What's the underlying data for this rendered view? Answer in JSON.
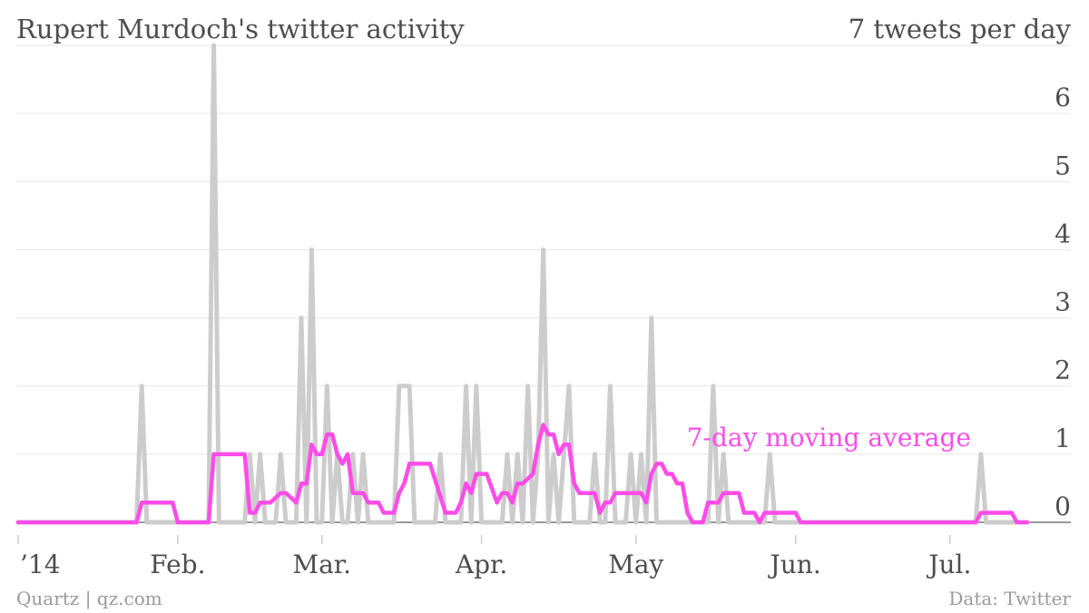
{
  "chart_data": {
    "type": "line",
    "title": "Rupert Murdoch's twitter activity",
    "ylabel": "7 tweets per day",
    "yticks": [
      0,
      1,
      2,
      3,
      4,
      5,
      6
    ],
    "ylim": [
      0,
      7
    ],
    "xlim": [
      "2014-01-01",
      "2014-07-22"
    ],
    "xticks": [
      {
        "date": "2014-01-01",
        "label": "’14"
      },
      {
        "date": "2014-02-01",
        "label": "Feb."
      },
      {
        "date": "2014-03-01",
        "label": "Mar."
      },
      {
        "date": "2014-04-01",
        "label": "Apr."
      },
      {
        "date": "2014-05-01",
        "label": "May"
      },
      {
        "date": "2014-06-01",
        "label": "Jun."
      },
      {
        "date": "2014-07-01",
        "label": "Jul."
      }
    ],
    "grid": true,
    "source": "Data: Twitter",
    "credit": "Quartz | qz.com",
    "series": [
      {
        "name": "",
        "color": "#cccccc",
        "points": [
          [
            "2014-01-01",
            0
          ],
          [
            "2014-01-24",
            0
          ],
          [
            "2014-01-25",
            2
          ],
          [
            "2014-01-26",
            0
          ],
          [
            "2014-02-07",
            0
          ],
          [
            "2014-02-08",
            7
          ],
          [
            "2014-02-09",
            0
          ],
          [
            "2014-02-14",
            0
          ],
          [
            "2014-02-15",
            1
          ],
          [
            "2014-02-16",
            0
          ],
          [
            "2014-02-17",
            1
          ],
          [
            "2014-02-18",
            0
          ],
          [
            "2014-02-20",
            0
          ],
          [
            "2014-02-21",
            1
          ],
          [
            "2014-02-22",
            0
          ],
          [
            "2014-02-24",
            0
          ],
          [
            "2014-02-25",
            3
          ],
          [
            "2014-02-26",
            0
          ],
          [
            "2014-02-27",
            4
          ],
          [
            "2014-02-28",
            0
          ],
          [
            "2014-03-01",
            0
          ],
          [
            "2014-03-02",
            2
          ],
          [
            "2014-03-03",
            0
          ],
          [
            "2014-03-04",
            1
          ],
          [
            "2014-03-05",
            0
          ],
          [
            "2014-03-06",
            0
          ],
          [
            "2014-03-07",
            1
          ],
          [
            "2014-03-08",
            0
          ],
          [
            "2014-03-09",
            1
          ],
          [
            "2014-03-10",
            0
          ],
          [
            "2014-03-15",
            0
          ],
          [
            "2014-03-16",
            2
          ],
          [
            "2014-03-18",
            2
          ],
          [
            "2014-03-19",
            0
          ],
          [
            "2014-03-23",
            0
          ],
          [
            "2014-03-24",
            1
          ],
          [
            "2014-03-25",
            0
          ],
          [
            "2014-03-28",
            0
          ],
          [
            "2014-03-29",
            2
          ],
          [
            "2014-03-30",
            0
          ],
          [
            "2014-03-31",
            2
          ],
          [
            "2014-04-01",
            0
          ],
          [
            "2014-04-05",
            0
          ],
          [
            "2014-04-06",
            1
          ],
          [
            "2014-04-07",
            0
          ],
          [
            "2014-04-08",
            1
          ],
          [
            "2014-04-09",
            0
          ],
          [
            "2014-04-10",
            2
          ],
          [
            "2014-04-11",
            0
          ],
          [
            "2014-04-12",
            1
          ],
          [
            "2014-04-13",
            4
          ],
          [
            "2014-04-14",
            0
          ],
          [
            "2014-04-15",
            1
          ],
          [
            "2014-04-16",
            0
          ],
          [
            "2014-04-17",
            1
          ],
          [
            "2014-04-18",
            2
          ],
          [
            "2014-04-19",
            0
          ],
          [
            "2014-04-22",
            0
          ],
          [
            "2014-04-23",
            1
          ],
          [
            "2014-04-24",
            0
          ],
          [
            "2014-04-25",
            0
          ],
          [
            "2014-04-26",
            2
          ],
          [
            "2014-04-27",
            0
          ],
          [
            "2014-04-29",
            0
          ],
          [
            "2014-04-30",
            1
          ],
          [
            "2014-05-01",
            0
          ],
          [
            "2014-05-02",
            1
          ],
          [
            "2014-05-03",
            0
          ],
          [
            "2014-05-04",
            3
          ],
          [
            "2014-05-05",
            0
          ],
          [
            "2014-05-15",
            0
          ],
          [
            "2014-05-16",
            2
          ],
          [
            "2014-05-17",
            0
          ],
          [
            "2014-05-18",
            1
          ],
          [
            "2014-05-19",
            0
          ],
          [
            "2014-05-26",
            0
          ],
          [
            "2014-05-27",
            1
          ],
          [
            "2014-05-28",
            0
          ],
          [
            "2014-07-06",
            0
          ],
          [
            "2014-07-07",
            1
          ],
          [
            "2014-07-08",
            0
          ],
          [
            "2014-07-16",
            0
          ]
        ]
      },
      {
        "name": "7-day moving average",
        "color": "#ff4ce8",
        "points": [
          [
            "2014-01-01",
            0
          ],
          [
            "2014-01-24",
            0
          ],
          [
            "2014-01-25",
            0.29
          ],
          [
            "2014-01-31",
            0.29
          ],
          [
            "2014-02-01",
            0
          ],
          [
            "2014-02-07",
            0
          ],
          [
            "2014-02-08",
            1
          ],
          [
            "2014-02-14",
            1
          ],
          [
            "2014-02-15",
            0.14
          ],
          [
            "2014-02-16",
            0.14
          ],
          [
            "2014-02-17",
            0.29
          ],
          [
            "2014-02-19",
            0.29
          ],
          [
            "2014-02-21",
            0.43
          ],
          [
            "2014-02-22",
            0.43
          ],
          [
            "2014-02-24",
            0.29
          ],
          [
            "2014-02-25",
            0.57
          ],
          [
            "2014-02-26",
            0.57
          ],
          [
            "2014-02-27",
            1.14
          ],
          [
            "2014-02-28",
            1.0
          ],
          [
            "2014-03-01",
            1.0
          ],
          [
            "2014-03-02",
            1.29
          ],
          [
            "2014-03-03",
            1.29
          ],
          [
            "2014-03-04",
            1.0
          ],
          [
            "2014-03-05",
            0.86
          ],
          [
            "2014-03-06",
            1.0
          ],
          [
            "2014-03-07",
            0.43
          ],
          [
            "2014-03-09",
            0.43
          ],
          [
            "2014-03-10",
            0.29
          ],
          [
            "2014-03-12",
            0.29
          ],
          [
            "2014-03-13",
            0.14
          ],
          [
            "2014-03-15",
            0.14
          ],
          [
            "2014-03-16",
            0.43
          ],
          [
            "2014-03-17",
            0.57
          ],
          [
            "2014-03-18",
            0.86
          ],
          [
            "2014-03-22",
            0.86
          ],
          [
            "2014-03-25",
            0.14
          ],
          [
            "2014-03-27",
            0.14
          ],
          [
            "2014-03-28",
            0.29
          ],
          [
            "2014-03-29",
            0.57
          ],
          [
            "2014-03-30",
            0.43
          ],
          [
            "2014-03-31",
            0.71
          ],
          [
            "2014-04-02",
            0.71
          ],
          [
            "2014-04-04",
            0.29
          ],
          [
            "2014-04-05",
            0.43
          ],
          [
            "2014-04-06",
            0.43
          ],
          [
            "2014-04-07",
            0.29
          ],
          [
            "2014-04-08",
            0.57
          ],
          [
            "2014-04-09",
            0.57
          ],
          [
            "2014-04-11",
            0.71
          ],
          [
            "2014-04-12",
            1.14
          ],
          [
            "2014-04-13",
            1.43
          ],
          [
            "2014-04-14",
            1.29
          ],
          [
            "2014-04-15",
            1.29
          ],
          [
            "2014-04-16",
            1.0
          ],
          [
            "2014-04-17",
            1.14
          ],
          [
            "2014-04-18",
            1.14
          ],
          [
            "2014-04-19",
            0.57
          ],
          [
            "2014-04-20",
            0.43
          ],
          [
            "2014-04-23",
            0.43
          ],
          [
            "2014-04-24",
            0.14
          ],
          [
            "2014-04-25",
            0.29
          ],
          [
            "2014-04-26",
            0.29
          ],
          [
            "2014-04-27",
            0.43
          ],
          [
            "2014-05-02",
            0.43
          ],
          [
            "2014-05-03",
            0.29
          ],
          [
            "2014-05-04",
            0.71
          ],
          [
            "2014-05-05",
            0.86
          ],
          [
            "2014-05-06",
            0.86
          ],
          [
            "2014-05-07",
            0.71
          ],
          [
            "2014-05-08",
            0.71
          ],
          [
            "2014-05-09",
            0.57
          ],
          [
            "2014-05-10",
            0.57
          ],
          [
            "2014-05-11",
            0.14
          ],
          [
            "2014-05-12",
            0
          ],
          [
            "2014-05-14",
            0
          ],
          [
            "2014-05-15",
            0.29
          ],
          [
            "2014-05-17",
            0.29
          ],
          [
            "2014-05-18",
            0.43
          ],
          [
            "2014-05-21",
            0.43
          ],
          [
            "2014-05-22",
            0.14
          ],
          [
            "2014-05-24",
            0.14
          ],
          [
            "2014-05-25",
            0
          ],
          [
            "2014-05-26",
            0.14
          ],
          [
            "2014-06-01",
            0.14
          ],
          [
            "2014-06-02",
            0
          ],
          [
            "2014-07-06",
            0
          ],
          [
            "2014-07-07",
            0.14
          ],
          [
            "2014-07-13",
            0.14
          ],
          [
            "2014-07-14",
            0
          ],
          [
            "2014-07-16",
            0
          ]
        ]
      }
    ]
  }
}
